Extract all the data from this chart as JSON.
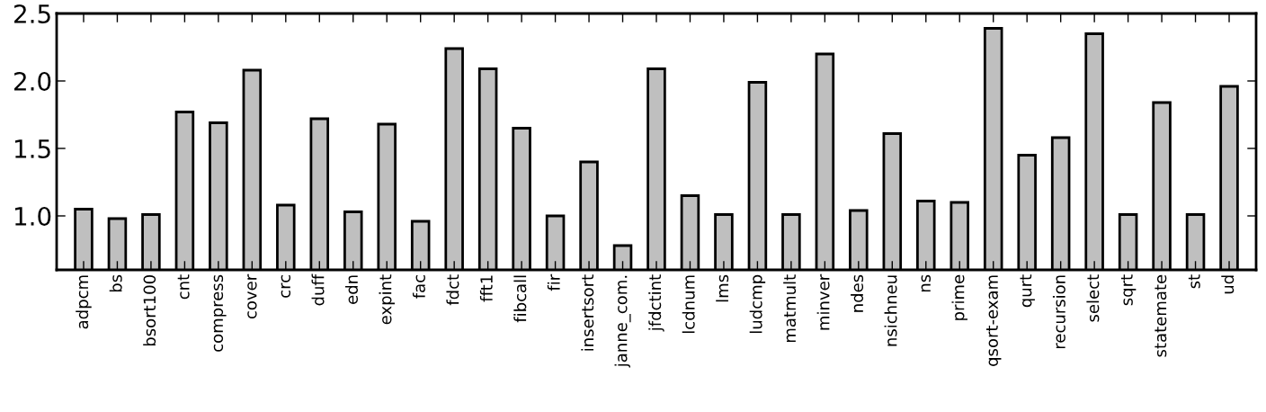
{
  "chart_data": {
    "type": "bar",
    "categories": [
      "adpcm",
      "bs",
      "bsort100",
      "cnt",
      "compress",
      "cover",
      "crc",
      "duff",
      "edn",
      "expint",
      "fac",
      "fdct",
      "fft1",
      "fibcall",
      "fir",
      "insertsort",
      "janne_com.",
      "jfdctint",
      "lcdnum",
      "lms",
      "ludcmp",
      "matmult",
      "minver",
      "ndes",
      "nsichneu",
      "ns",
      "prime",
      "qsort-exam",
      "qurt",
      "recursion",
      "select",
      "sqrt",
      "statemate",
      "st",
      "ud"
    ],
    "values": [
      1.05,
      0.98,
      1.01,
      1.77,
      1.69,
      2.08,
      1.08,
      1.72,
      1.03,
      1.68,
      0.96,
      2.24,
      2.09,
      1.65,
      1.0,
      1.4,
      0.78,
      2.09,
      1.15,
      1.01,
      1.99,
      1.01,
      2.2,
      1.04,
      1.61,
      1.11,
      1.1,
      2.39,
      1.45,
      1.58,
      2.35,
      1.01,
      1.84,
      1.01,
      1.96
    ],
    "color": "#bfbfbf",
    "ylim": [
      0.6,
      2.5
    ],
    "yticks": [
      {
        "value": 1.0,
        "label": "1.0"
      },
      {
        "value": 1.5,
        "label": "1.5"
      },
      {
        "value": 2.0,
        "label": "2.0"
      },
      {
        "value": 2.5,
        "label": "2.5"
      }
    ],
    "grid": false,
    "legend": false
  }
}
